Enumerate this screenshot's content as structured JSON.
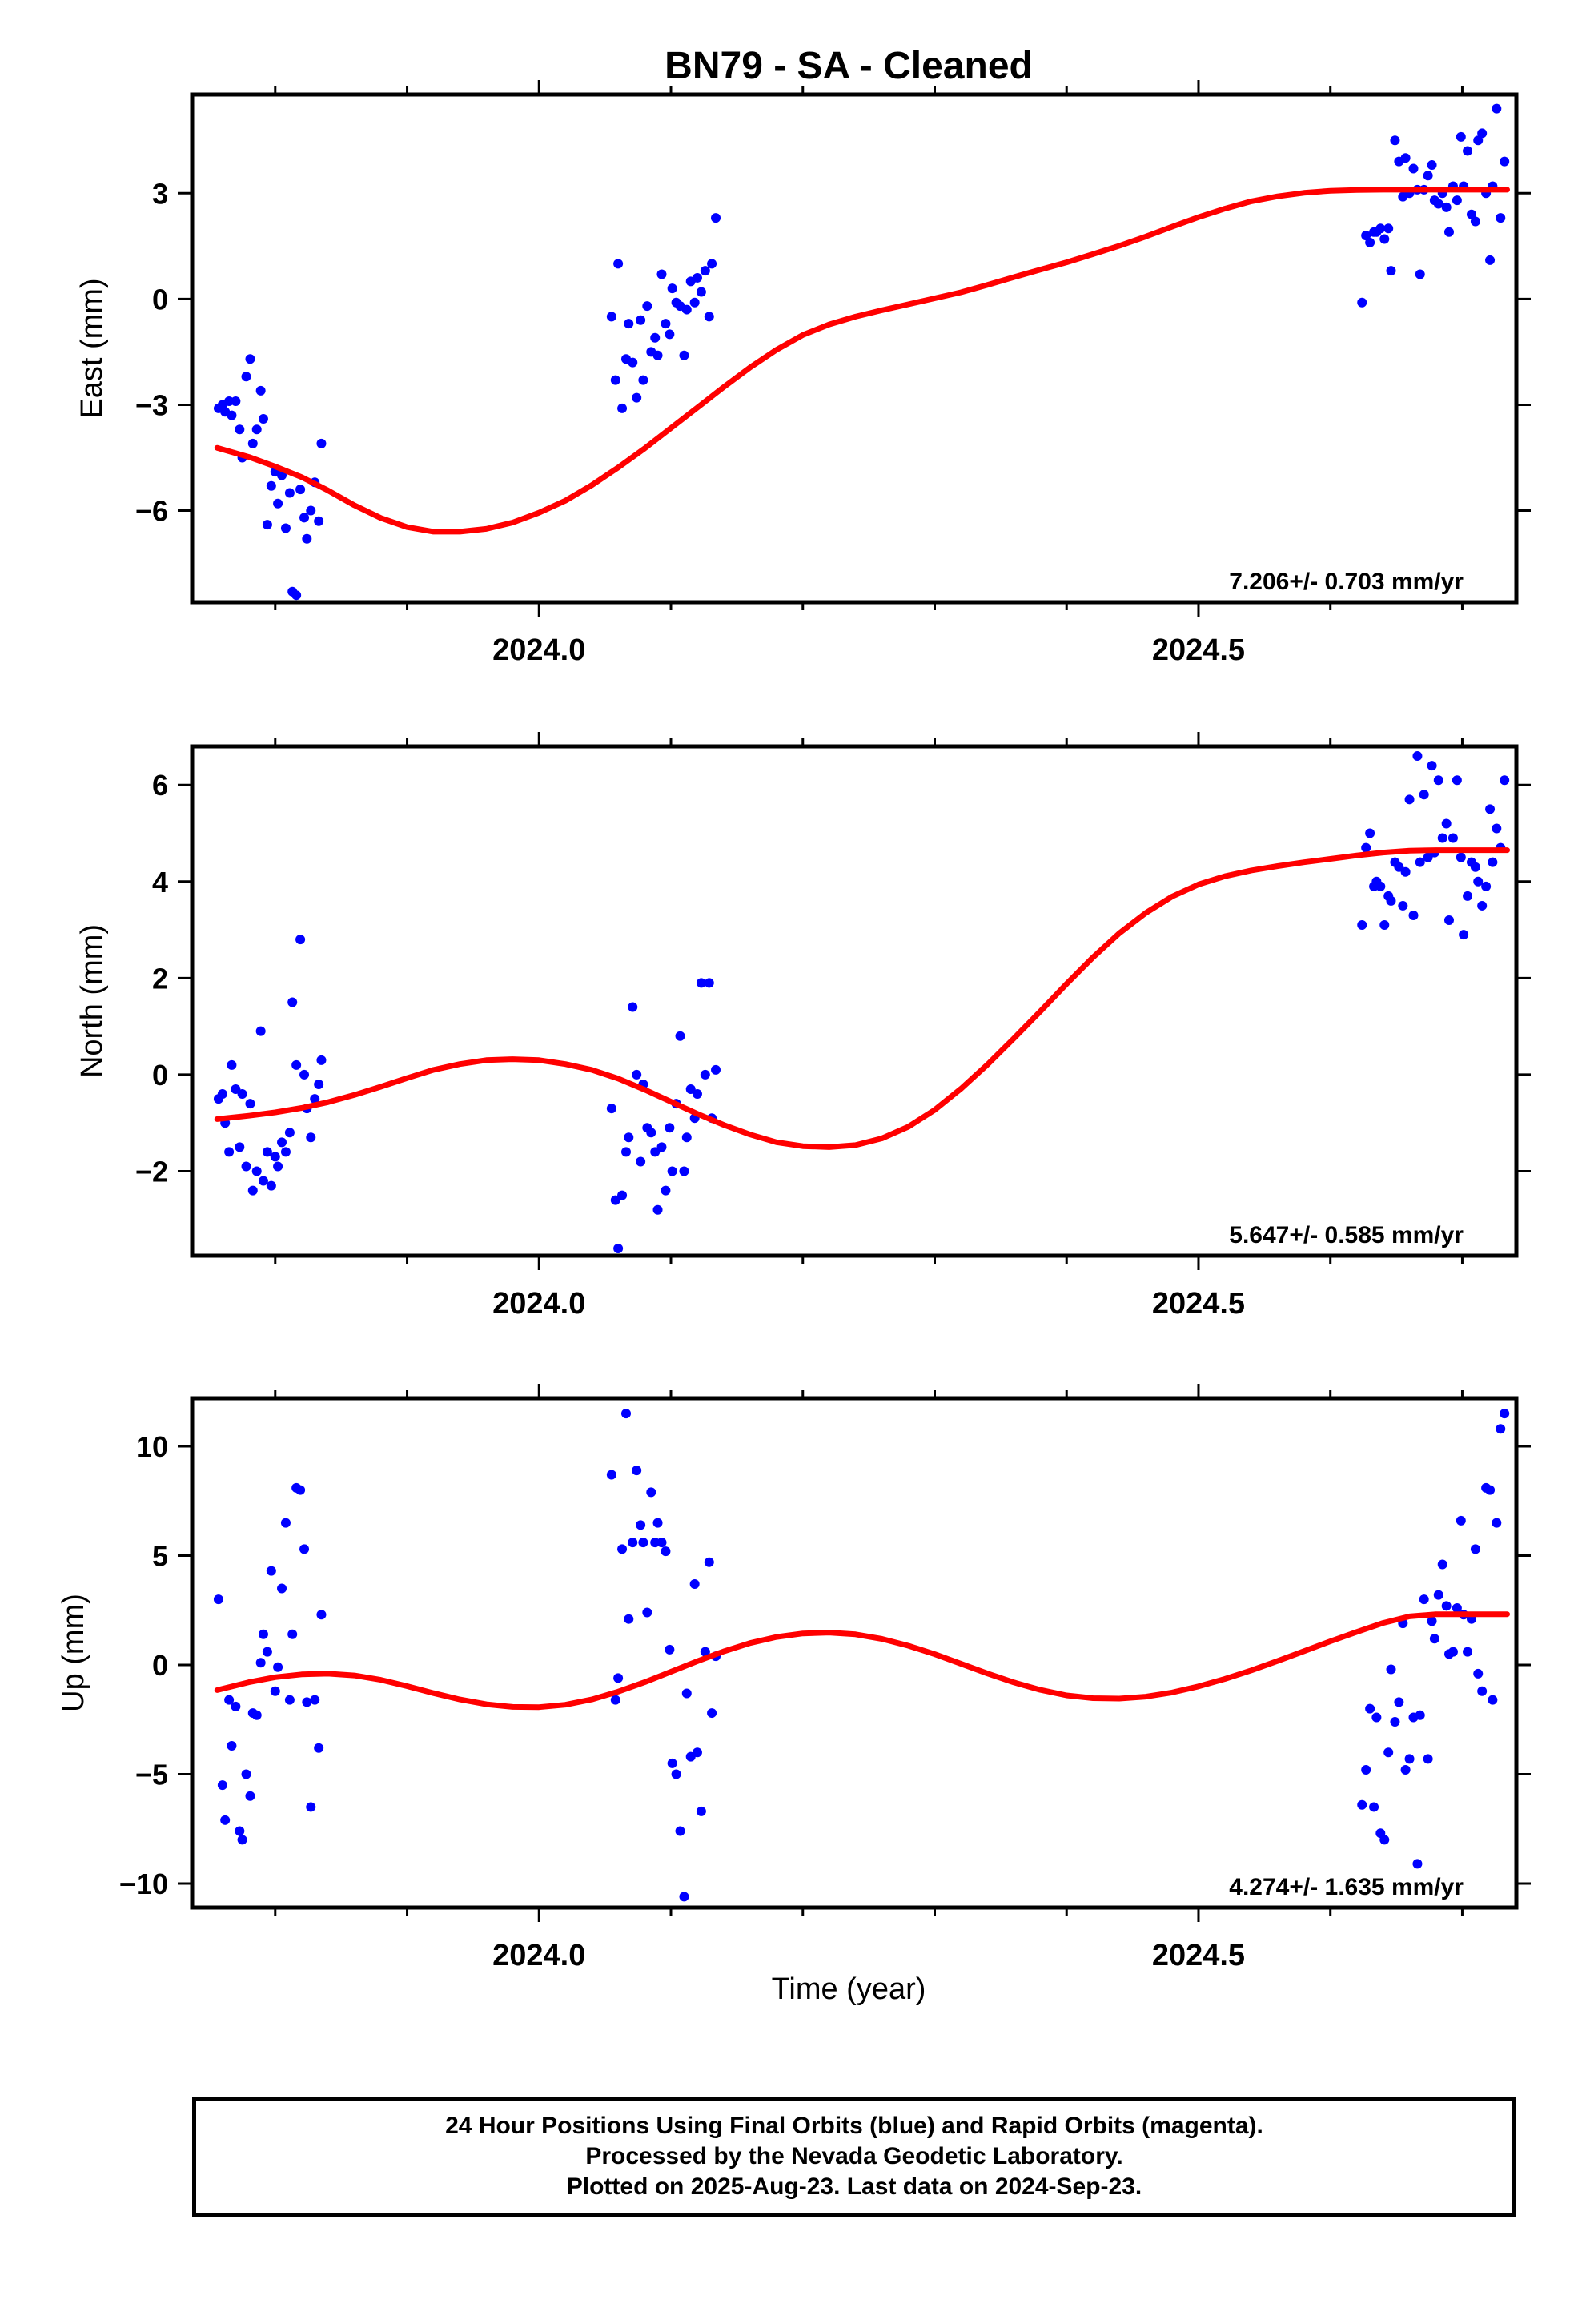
{
  "title": "BN79  - SA - Cleaned",
  "xlabel": "Time (year)",
  "footer": [
    "24 Hour Positions Using Final Orbits (blue) and Rapid Orbits (magenta).",
    "Processed by the Nevada Geodetic Laboratory.",
    "Plotted on 2025-Aug-23. Last data on 2024-Sep-23."
  ],
  "colors": {
    "data": "#0000ff",
    "fit": "#ff0000",
    "frame": "#000000"
  },
  "chart_data": [
    {
      "type": "scatter",
      "name": "east",
      "ylabel": "East (mm)",
      "rate": "7.206+/- 0.703 mm/yr",
      "xlim": [
        2023.737,
        2024.741
      ],
      "ylim": [
        -8.6,
        5.8
      ],
      "yticks": [
        3,
        0,
        -3,
        -6
      ],
      "ytick_labels": [
        "3",
        "0",
        "−3",
        "−6"
      ],
      "xticks_major": [
        2024.0,
        2024.5
      ],
      "xtick_labels": [
        "2024.0",
        "2024.5"
      ],
      "x": [
        2023.757,
        2023.76,
        2023.762,
        2023.765,
        2023.767,
        2023.77,
        2023.773,
        2023.775,
        2023.778,
        2023.781,
        2023.783,
        2023.786,
        2023.789,
        2023.791,
        2023.794,
        2023.797,
        2023.8,
        2023.802,
        2023.805,
        2023.808,
        2023.811,
        2023.813,
        2023.816,
        2023.819,
        2023.822,
        2023.824,
        2023.827,
        2023.83,
        2023.833,
        2023.835,
        2024.055,
        2024.058,
        2024.06,
        2024.063,
        2024.066,
        2024.068,
        2024.071,
        2024.074,
        2024.077,
        2024.079,
        2024.082,
        2024.085,
        2024.088,
        2024.09,
        2024.093,
        2024.096,
        2024.099,
        2024.101,
        2024.104,
        2024.107,
        2024.11,
        2024.112,
        2024.115,
        2024.118,
        2024.12,
        2024.123,
        2024.126,
        2024.129,
        2024.131,
        2024.134,
        2024.624,
        2024.627,
        2024.63,
        2024.633,
        2024.635,
        2024.638,
        2024.641,
        2024.644,
        2024.646,
        2024.649,
        2024.652,
        2024.655,
        2024.657,
        2024.66,
        2024.663,
        2024.666,
        2024.668,
        2024.671,
        2024.674,
        2024.677,
        2024.679,
        2024.682,
        2024.685,
        2024.688,
        2024.69,
        2024.693,
        2024.696,
        2024.699,
        2024.701,
        2024.704,
        2024.707,
        2024.71,
        2024.712,
        2024.715,
        2024.718,
        2024.721,
        2024.723,
        2024.726,
        2024.729,
        2024.732
      ],
      "y": [
        -3.1,
        -3.0,
        -3.2,
        -2.9,
        -3.3,
        -2.9,
        -3.7,
        -4.5,
        -2.2,
        -1.7,
        -4.1,
        -3.7,
        -2.6,
        -3.4,
        -6.4,
        -5.3,
        -4.9,
        -5.8,
        -5.0,
        -6.5,
        -5.5,
        -8.3,
        -8.4,
        -5.4,
        -6.2,
        -6.8,
        -6.0,
        -5.2,
        -6.3,
        -4.1,
        -0.5,
        -2.3,
        1.0,
        -3.1,
        -1.7,
        -0.7,
        -1.8,
        -2.8,
        -0.6,
        -2.3,
        -0.2,
        -1.5,
        -1.1,
        -1.6,
        0.7,
        -0.7,
        -1.0,
        0.3,
        -0.1,
        -0.2,
        -1.6,
        -0.3,
        0.5,
        -0.1,
        0.6,
        0.2,
        0.8,
        -0.5,
        1.0,
        2.3,
        -0.1,
        1.8,
        1.6,
        1.9,
        1.9,
        2.0,
        1.7,
        2.0,
        0.8,
        4.5,
        3.9,
        2.9,
        4.0,
        3.0,
        3.7,
        3.1,
        0.7,
        3.1,
        3.5,
        3.8,
        2.8,
        2.7,
        3.0,
        2.6,
        1.9,
        3.2,
        2.8,
        4.6,
        3.2,
        4.2,
        2.4,
        2.2,
        4.5,
        4.7,
        3.0,
        1.1,
        3.2,
        5.4,
        2.3,
        3.9
      ],
      "fit_x": [
        2023.756,
        2023.78,
        2023.8,
        2023.82,
        2023.84,
        2023.86,
        2023.88,
        2023.9,
        2023.92,
        2023.94,
        2023.96,
        2023.98,
        2024.0,
        2024.02,
        2024.04,
        2024.06,
        2024.08,
        2024.1,
        2024.12,
        2024.14,
        2024.16,
        2024.18,
        2024.2,
        2024.22,
        2024.24,
        2024.26,
        2024.28,
        2024.3,
        2024.32,
        2024.34,
        2024.36,
        2024.38,
        2024.4,
        2024.42,
        2024.44,
        2024.46,
        2024.48,
        2024.5,
        2024.52,
        2024.54,
        2024.56,
        2024.58,
        2024.6,
        2024.62,
        2024.64,
        2024.66,
        2024.68,
        2024.7,
        2024.72,
        2024.734
      ],
      "fit_y": [
        -4.22,
        -4.48,
        -4.75,
        -5.05,
        -5.43,
        -5.85,
        -6.21,
        -6.47,
        -6.6,
        -6.6,
        -6.52,
        -6.34,
        -6.06,
        -5.72,
        -5.28,
        -4.78,
        -4.24,
        -3.66,
        -3.08,
        -2.5,
        -1.94,
        -1.44,
        -1.02,
        -0.72,
        -0.5,
        -0.32,
        -0.15,
        0.02,
        0.19,
        0.4,
        0.62,
        0.83,
        1.04,
        1.27,
        1.51,
        1.77,
        2.05,
        2.32,
        2.56,
        2.77,
        2.91,
        3.01,
        3.07,
        3.09,
        3.1,
        3.1,
        3.1,
        3.1,
        3.1,
        3.1
      ]
    },
    {
      "type": "scatter",
      "name": "north",
      "ylabel": "North (mm)",
      "rate": "5.647+/- 0.585 mm/yr",
      "xlim": [
        2023.737,
        2024.741
      ],
      "ylim": [
        -3.75,
        6.8
      ],
      "yticks": [
        6,
        4,
        2,
        0,
        -2
      ],
      "ytick_labels": [
        "6",
        "4",
        "2",
        "0",
        "−2"
      ],
      "xticks_major": [
        2024.0,
        2024.5
      ],
      "xtick_labels": [
        "2024.0",
        "2024.5"
      ],
      "x": [
        2023.757,
        2023.76,
        2023.762,
        2023.765,
        2023.767,
        2023.77,
        2023.773,
        2023.775,
        2023.778,
        2023.781,
        2023.783,
        2023.786,
        2023.789,
        2023.791,
        2023.794,
        2023.797,
        2023.8,
        2023.802,
        2023.805,
        2023.808,
        2023.811,
        2023.813,
        2023.816,
        2023.819,
        2023.822,
        2023.824,
        2023.827,
        2023.83,
        2023.833,
        2023.835,
        2024.055,
        2024.058,
        2024.06,
        2024.063,
        2024.066,
        2024.068,
        2024.071,
        2024.074,
        2024.077,
        2024.079,
        2024.082,
        2024.085,
        2024.088,
        2024.09,
        2024.093,
        2024.096,
        2024.099,
        2024.101,
        2024.104,
        2024.107,
        2024.11,
        2024.112,
        2024.115,
        2024.118,
        2024.12,
        2024.123,
        2024.126,
        2024.129,
        2024.131,
        2024.134,
        2024.624,
        2024.627,
        2024.63,
        2024.633,
        2024.635,
        2024.638,
        2024.641,
        2024.644,
        2024.646,
        2024.649,
        2024.652,
        2024.655,
        2024.657,
        2024.66,
        2024.663,
        2024.666,
        2024.668,
        2024.671,
        2024.674,
        2024.677,
        2024.679,
        2024.682,
        2024.685,
        2024.688,
        2024.69,
        2024.693,
        2024.696,
        2024.699,
        2024.701,
        2024.704,
        2024.707,
        2024.71,
        2024.712,
        2024.715,
        2024.718,
        2024.721,
        2024.723,
        2024.726,
        2024.729,
        2024.732
      ],
      "y": [
        -0.5,
        -0.4,
        -1.0,
        -1.6,
        0.2,
        -0.3,
        -1.5,
        -0.4,
        -1.9,
        -0.6,
        -2.4,
        -2.0,
        0.9,
        -2.2,
        -1.6,
        -2.3,
        -1.7,
        -1.9,
        -1.4,
        -1.6,
        -1.2,
        1.5,
        0.2,
        2.8,
        0.0,
        -0.7,
        -1.3,
        -0.5,
        -0.2,
        0.3,
        -0.7,
        -2.6,
        -3.6,
        -2.5,
        -1.6,
        -1.3,
        1.4,
        0.0,
        -1.8,
        -0.2,
        -1.1,
        -1.2,
        -1.6,
        -2.8,
        -1.5,
        -2.4,
        -1.1,
        -2.0,
        -0.6,
        0.8,
        -2.0,
        -1.3,
        -0.3,
        -0.9,
        -0.4,
        1.9,
        0.0,
        1.9,
        -0.9,
        0.1,
        3.1,
        4.7,
        5.0,
        3.9,
        4.0,
        3.9,
        3.1,
        3.7,
        3.6,
        4.4,
        4.3,
        3.5,
        4.2,
        5.7,
        3.3,
        6.6,
        4.4,
        5.8,
        4.5,
        6.4,
        4.6,
        6.1,
        4.9,
        5.2,
        3.2,
        4.9,
        6.1,
        4.5,
        2.9,
        3.7,
        4.4,
        4.3,
        4.0,
        3.5,
        3.9,
        5.5,
        4.4,
        5.1,
        4.7,
        6.1
      ],
      "fit_x": [
        2023.756,
        2023.78,
        2023.8,
        2023.82,
        2023.84,
        2023.86,
        2023.88,
        2023.9,
        2023.92,
        2023.94,
        2023.96,
        2023.98,
        2024.0,
        2024.02,
        2024.04,
        2024.06,
        2024.08,
        2024.1,
        2024.12,
        2024.14,
        2024.16,
        2024.18,
        2024.2,
        2024.22,
        2024.24,
        2024.26,
        2024.28,
        2024.3,
        2024.32,
        2024.34,
        2024.36,
        2024.38,
        2024.4,
        2024.42,
        2024.44,
        2024.46,
        2024.48,
        2024.5,
        2024.52,
        2024.54,
        2024.56,
        2024.58,
        2024.6,
        2024.62,
        2024.64,
        2024.66,
        2024.68,
        2024.7,
        2024.72,
        2024.734
      ],
      "fit_y": [
        -0.92,
        -0.85,
        -0.78,
        -0.69,
        -0.57,
        -0.42,
        -0.25,
        -0.07,
        0.1,
        0.22,
        0.3,
        0.32,
        0.3,
        0.22,
        0.1,
        -0.08,
        -0.31,
        -0.56,
        -0.81,
        -1.04,
        -1.24,
        -1.4,
        -1.48,
        -1.5,
        -1.46,
        -1.32,
        -1.08,
        -0.73,
        -0.29,
        0.21,
        0.75,
        1.31,
        1.88,
        2.43,
        2.93,
        3.35,
        3.69,
        3.94,
        4.11,
        4.23,
        4.32,
        4.4,
        4.47,
        4.54,
        4.6,
        4.64,
        4.65,
        4.65,
        4.65,
        4.65
      ]
    },
    {
      "type": "scatter",
      "name": "up",
      "ylabel": "Up (mm)",
      "rate": "4.274+/- 1.635 mm/yr",
      "xlim": [
        2023.737,
        2024.741
      ],
      "ylim": [
        -11.1,
        12.2
      ],
      "yticks": [
        10,
        5,
        0,
        -5,
        -10
      ],
      "ytick_labels": [
        "10",
        "5",
        "0",
        "−5",
        "−10"
      ],
      "xticks_major": [
        2024.0,
        2024.5
      ],
      "xtick_labels": [
        "2024.0",
        "2024.5"
      ],
      "x": [
        2023.757,
        2023.76,
        2023.762,
        2023.765,
        2023.767,
        2023.77,
        2023.773,
        2023.775,
        2023.778,
        2023.781,
        2023.783,
        2023.786,
        2023.789,
        2023.791,
        2023.794,
        2023.797,
        2023.8,
        2023.802,
        2023.805,
        2023.808,
        2023.811,
        2023.813,
        2023.816,
        2023.819,
        2023.822,
        2023.824,
        2023.827,
        2023.83,
        2023.833,
        2023.835,
        2024.055,
        2024.058,
        2024.06,
        2024.063,
        2024.066,
        2024.068,
        2024.071,
        2024.074,
        2024.077,
        2024.079,
        2024.082,
        2024.085,
        2024.088,
        2024.09,
        2024.093,
        2024.096,
        2024.099,
        2024.101,
        2024.104,
        2024.107,
        2024.11,
        2024.112,
        2024.115,
        2024.118,
        2024.12,
        2024.123,
        2024.126,
        2024.129,
        2024.131,
        2024.134,
        2024.624,
        2024.627,
        2024.63,
        2024.633,
        2024.635,
        2024.638,
        2024.641,
        2024.644,
        2024.646,
        2024.649,
        2024.652,
        2024.655,
        2024.657,
        2024.66,
        2024.663,
        2024.666,
        2024.668,
        2024.671,
        2024.674,
        2024.677,
        2024.679,
        2024.682,
        2024.685,
        2024.688,
        2024.69,
        2024.693,
        2024.696,
        2024.699,
        2024.701,
        2024.704,
        2024.707,
        2024.71,
        2024.712,
        2024.715,
        2024.718,
        2024.721,
        2024.723,
        2024.726,
        2024.729,
        2024.732
      ],
      "y": [
        3.0,
        -5.5,
        -7.1,
        -1.6,
        -3.7,
        -1.9,
        -7.6,
        -8.0,
        -5.0,
        -6.0,
        -2.2,
        -2.3,
        0.1,
        1.4,
        0.6,
        4.3,
        -1.2,
        -0.1,
        3.5,
        6.5,
        -1.6,
        1.4,
        8.1,
        8.0,
        5.3,
        -1.7,
        -6.5,
        -1.6,
        -3.8,
        2.3,
        8.7,
        -1.6,
        -0.6,
        5.3,
        11.5,
        2.1,
        5.6,
        8.9,
        6.4,
        5.6,
        2.4,
        7.9,
        5.6,
        6.5,
        5.6,
        5.2,
        0.7,
        -4.5,
        -5.0,
        -7.6,
        -10.6,
        -1.3,
        -4.2,
        3.7,
        -4.0,
        -6.7,
        0.6,
        4.7,
        -2.2,
        0.4,
        -6.4,
        -4.8,
        -2.0,
        -6.5,
        -2.4,
        -7.7,
        -8.0,
        -4.0,
        -0.2,
        -2.6,
        -1.7,
        1.9,
        -4.8,
        -4.3,
        -2.4,
        -9.1,
        -2.3,
        3.0,
        -4.3,
        2.0,
        1.2,
        3.2,
        4.6,
        2.7,
        0.5,
        0.6,
        2.6,
        6.6,
        2.3,
        0.6,
        2.1,
        5.3,
        -0.4,
        -1.2,
        8.1,
        8.0,
        -1.6,
        6.5,
        10.8,
        11.5
      ],
      "fit_x": [
        2023.756,
        2023.78,
        2023.8,
        2023.82,
        2023.84,
        2023.86,
        2023.88,
        2023.9,
        2023.92,
        2023.94,
        2023.96,
        2023.98,
        2024.0,
        2024.02,
        2024.04,
        2024.06,
        2024.08,
        2024.1,
        2024.12,
        2024.14,
        2024.16,
        2024.18,
        2024.2,
        2024.22,
        2024.24,
        2024.26,
        2024.28,
        2024.3,
        2024.32,
        2024.34,
        2024.36,
        2024.38,
        2024.4,
        2024.42,
        2024.44,
        2024.46,
        2024.48,
        2024.5,
        2024.52,
        2024.54,
        2024.56,
        2024.58,
        2024.6,
        2024.62,
        2024.64,
        2024.66,
        2024.68,
        2024.7,
        2024.72,
        2024.734
      ],
      "fit_y": [
        -1.15,
        -0.79,
        -0.56,
        -0.43,
        -0.4,
        -0.48,
        -0.68,
        -0.97,
        -1.29,
        -1.58,
        -1.8,
        -1.92,
        -1.93,
        -1.82,
        -1.58,
        -1.22,
        -0.79,
        -0.31,
        0.17,
        0.62,
        1.0,
        1.28,
        1.44,
        1.48,
        1.4,
        1.19,
        0.88,
        0.49,
        0.05,
        -0.39,
        -0.8,
        -1.14,
        -1.39,
        -1.52,
        -1.54,
        -1.45,
        -1.26,
        -0.98,
        -0.64,
        -0.25,
        0.18,
        0.63,
        1.08,
        1.51,
        1.92,
        2.22,
        2.32,
        2.32,
        2.32,
        2.32
      ]
    }
  ]
}
